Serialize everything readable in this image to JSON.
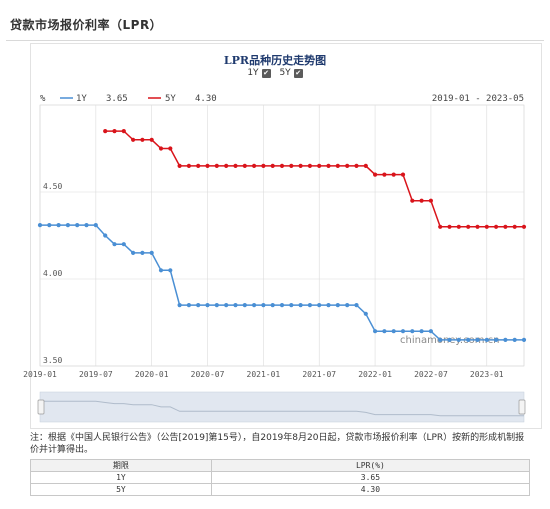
{
  "page": {
    "title": "贷款市场报价利率（LPR）"
  },
  "chart_title": "LPR品种历史走势图",
  "toggles": [
    {
      "label": "1Y",
      "checked": true
    },
    {
      "label": "5Y",
      "checked": true
    }
  ],
  "note": "注：根据《中国人民银行公告》（公告[2019]第15号），自2019年8月20日起，贷款市场报价利率（LPR）按新的形成机制报价并计算得出。",
  "table": {
    "headers": [
      "期限",
      "LPR(%)"
    ],
    "rows": [
      {
        "term": "1Y",
        "rate": "3.65"
      },
      {
        "term": "5Y",
        "rate": "4.30"
      }
    ]
  },
  "chart_data": {
    "type": "line",
    "unit_label": "%",
    "date_range_label": "2019-01 - 2023-05",
    "watermark": "chinamoney.com.cn",
    "colors": {
      "1Y": "#4a8fd4",
      "5Y": "#d9141b"
    },
    "x_start": "2019-01",
    "x_end": "2023-05",
    "x_tick_labels": [
      "2019-01",
      "2019-07",
      "2020-01",
      "2020-07",
      "2021-01",
      "2021-07",
      "2022-01",
      "2022-07",
      "2023-01"
    ],
    "y_ticks": [
      3.5,
      4.0,
      4.5
    ],
    "ylim": [
      3.5,
      5.0
    ],
    "grid": true,
    "legend_placement": "top-left",
    "series": [
      {
        "name": "1Y",
        "latest": "3.65",
        "points": [
          [
            "2019-01",
            4.31
          ],
          [
            "2019-02",
            4.31
          ],
          [
            "2019-03",
            4.31
          ],
          [
            "2019-04",
            4.31
          ],
          [
            "2019-05",
            4.31
          ],
          [
            "2019-06",
            4.31
          ],
          [
            "2019-07",
            4.31
          ],
          [
            "2019-08",
            4.25
          ],
          [
            "2019-09",
            4.2
          ],
          [
            "2019-10",
            4.2
          ],
          [
            "2019-11",
            4.15
          ],
          [
            "2019-12",
            4.15
          ],
          [
            "2020-01",
            4.15
          ],
          [
            "2020-02",
            4.05
          ],
          [
            "2020-03",
            4.05
          ],
          [
            "2020-04",
            3.85
          ],
          [
            "2020-05",
            3.85
          ],
          [
            "2020-06",
            3.85
          ],
          [
            "2020-07",
            3.85
          ],
          [
            "2020-08",
            3.85
          ],
          [
            "2020-09",
            3.85
          ],
          [
            "2020-10",
            3.85
          ],
          [
            "2020-11",
            3.85
          ],
          [
            "2020-12",
            3.85
          ],
          [
            "2021-01",
            3.85
          ],
          [
            "2021-02",
            3.85
          ],
          [
            "2021-03",
            3.85
          ],
          [
            "2021-04",
            3.85
          ],
          [
            "2021-05",
            3.85
          ],
          [
            "2021-06",
            3.85
          ],
          [
            "2021-07",
            3.85
          ],
          [
            "2021-08",
            3.85
          ],
          [
            "2021-09",
            3.85
          ],
          [
            "2021-10",
            3.85
          ],
          [
            "2021-11",
            3.85
          ],
          [
            "2021-12",
            3.8
          ],
          [
            "2022-01",
            3.7
          ],
          [
            "2022-02",
            3.7
          ],
          [
            "2022-03",
            3.7
          ],
          [
            "2022-04",
            3.7
          ],
          [
            "2022-05",
            3.7
          ],
          [
            "2022-06",
            3.7
          ],
          [
            "2022-07",
            3.7
          ],
          [
            "2022-08",
            3.65
          ],
          [
            "2022-09",
            3.65
          ],
          [
            "2022-10",
            3.65
          ],
          [
            "2022-11",
            3.65
          ],
          [
            "2022-12",
            3.65
          ],
          [
            "2023-01",
            3.65
          ],
          [
            "2023-02",
            3.65
          ],
          [
            "2023-03",
            3.65
          ],
          [
            "2023-04",
            3.65
          ],
          [
            "2023-05",
            3.65
          ]
        ]
      },
      {
        "name": "5Y",
        "latest": "4.30",
        "points": [
          [
            "2019-08",
            4.85
          ],
          [
            "2019-09",
            4.85
          ],
          [
            "2019-10",
            4.85
          ],
          [
            "2019-11",
            4.8
          ],
          [
            "2019-12",
            4.8
          ],
          [
            "2020-01",
            4.8
          ],
          [
            "2020-02",
            4.75
          ],
          [
            "2020-03",
            4.75
          ],
          [
            "2020-04",
            4.65
          ],
          [
            "2020-05",
            4.65
          ],
          [
            "2020-06",
            4.65
          ],
          [
            "2020-07",
            4.65
          ],
          [
            "2020-08",
            4.65
          ],
          [
            "2020-09",
            4.65
          ],
          [
            "2020-10",
            4.65
          ],
          [
            "2020-11",
            4.65
          ],
          [
            "2020-12",
            4.65
          ],
          [
            "2021-01",
            4.65
          ],
          [
            "2021-02",
            4.65
          ],
          [
            "2021-03",
            4.65
          ],
          [
            "2021-04",
            4.65
          ],
          [
            "2021-05",
            4.65
          ],
          [
            "2021-06",
            4.65
          ],
          [
            "2021-07",
            4.65
          ],
          [
            "2021-08",
            4.65
          ],
          [
            "2021-09",
            4.65
          ],
          [
            "2021-10",
            4.65
          ],
          [
            "2021-11",
            4.65
          ],
          [
            "2021-12",
            4.65
          ],
          [
            "2022-01",
            4.6
          ],
          [
            "2022-02",
            4.6
          ],
          [
            "2022-03",
            4.6
          ],
          [
            "2022-04",
            4.6
          ],
          [
            "2022-05",
            4.45
          ],
          [
            "2022-06",
            4.45
          ],
          [
            "2022-07",
            4.45
          ],
          [
            "2022-08",
            4.3
          ],
          [
            "2022-09",
            4.3
          ],
          [
            "2022-10",
            4.3
          ],
          [
            "2022-11",
            4.3
          ],
          [
            "2022-12",
            4.3
          ],
          [
            "2023-01",
            4.3
          ],
          [
            "2023-02",
            4.3
          ],
          [
            "2023-03",
            4.3
          ],
          [
            "2023-04",
            4.3
          ],
          [
            "2023-05",
            4.3
          ]
        ]
      }
    ]
  }
}
